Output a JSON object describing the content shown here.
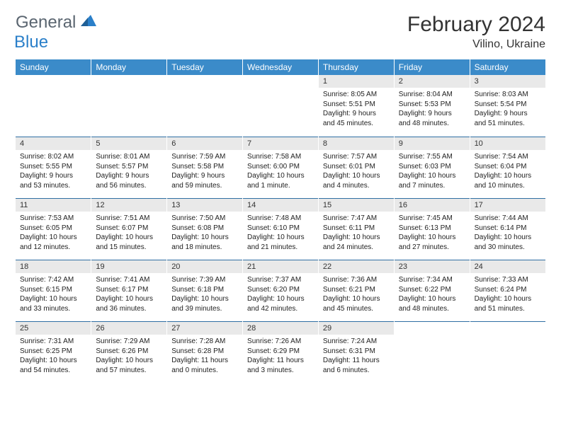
{
  "brand": {
    "general": "General",
    "blue": "Blue"
  },
  "title": "February 2024",
  "location": "Vilino, Ukraine",
  "colors": {
    "header_bg": "#3b8bc9",
    "header_text": "#ffffff",
    "strip_bg": "#e9e9e9",
    "divider": "#2f6fa3",
    "body_text": "#222222",
    "logo_gray": "#5a6570",
    "logo_blue": "#2a7fc9"
  },
  "weekdays": [
    "Sunday",
    "Monday",
    "Tuesday",
    "Wednesday",
    "Thursday",
    "Friday",
    "Saturday"
  ],
  "weeks": [
    [
      null,
      null,
      null,
      null,
      {
        "n": "1",
        "sr": "8:05 AM",
        "ss": "5:51 PM",
        "dl": "9 hours and 45 minutes."
      },
      {
        "n": "2",
        "sr": "8:04 AM",
        "ss": "5:53 PM",
        "dl": "9 hours and 48 minutes."
      },
      {
        "n": "3",
        "sr": "8:03 AM",
        "ss": "5:54 PM",
        "dl": "9 hours and 51 minutes."
      }
    ],
    [
      {
        "n": "4",
        "sr": "8:02 AM",
        "ss": "5:55 PM",
        "dl": "9 hours and 53 minutes."
      },
      {
        "n": "5",
        "sr": "8:01 AM",
        "ss": "5:57 PM",
        "dl": "9 hours and 56 minutes."
      },
      {
        "n": "6",
        "sr": "7:59 AM",
        "ss": "5:58 PM",
        "dl": "9 hours and 59 minutes."
      },
      {
        "n": "7",
        "sr": "7:58 AM",
        "ss": "6:00 PM",
        "dl": "10 hours and 1 minute."
      },
      {
        "n": "8",
        "sr": "7:57 AM",
        "ss": "6:01 PM",
        "dl": "10 hours and 4 minutes."
      },
      {
        "n": "9",
        "sr": "7:55 AM",
        "ss": "6:03 PM",
        "dl": "10 hours and 7 minutes."
      },
      {
        "n": "10",
        "sr": "7:54 AM",
        "ss": "6:04 PM",
        "dl": "10 hours and 10 minutes."
      }
    ],
    [
      {
        "n": "11",
        "sr": "7:53 AM",
        "ss": "6:05 PM",
        "dl": "10 hours and 12 minutes."
      },
      {
        "n": "12",
        "sr": "7:51 AM",
        "ss": "6:07 PM",
        "dl": "10 hours and 15 minutes."
      },
      {
        "n": "13",
        "sr": "7:50 AM",
        "ss": "6:08 PM",
        "dl": "10 hours and 18 minutes."
      },
      {
        "n": "14",
        "sr": "7:48 AM",
        "ss": "6:10 PM",
        "dl": "10 hours and 21 minutes."
      },
      {
        "n": "15",
        "sr": "7:47 AM",
        "ss": "6:11 PM",
        "dl": "10 hours and 24 minutes."
      },
      {
        "n": "16",
        "sr": "7:45 AM",
        "ss": "6:13 PM",
        "dl": "10 hours and 27 minutes."
      },
      {
        "n": "17",
        "sr": "7:44 AM",
        "ss": "6:14 PM",
        "dl": "10 hours and 30 minutes."
      }
    ],
    [
      {
        "n": "18",
        "sr": "7:42 AM",
        "ss": "6:15 PM",
        "dl": "10 hours and 33 minutes."
      },
      {
        "n": "19",
        "sr": "7:41 AM",
        "ss": "6:17 PM",
        "dl": "10 hours and 36 minutes."
      },
      {
        "n": "20",
        "sr": "7:39 AM",
        "ss": "6:18 PM",
        "dl": "10 hours and 39 minutes."
      },
      {
        "n": "21",
        "sr": "7:37 AM",
        "ss": "6:20 PM",
        "dl": "10 hours and 42 minutes."
      },
      {
        "n": "22",
        "sr": "7:36 AM",
        "ss": "6:21 PM",
        "dl": "10 hours and 45 minutes."
      },
      {
        "n": "23",
        "sr": "7:34 AM",
        "ss": "6:22 PM",
        "dl": "10 hours and 48 minutes."
      },
      {
        "n": "24",
        "sr": "7:33 AM",
        "ss": "6:24 PM",
        "dl": "10 hours and 51 minutes."
      }
    ],
    [
      {
        "n": "25",
        "sr": "7:31 AM",
        "ss": "6:25 PM",
        "dl": "10 hours and 54 minutes."
      },
      {
        "n": "26",
        "sr": "7:29 AM",
        "ss": "6:26 PM",
        "dl": "10 hours and 57 minutes."
      },
      {
        "n": "27",
        "sr": "7:28 AM",
        "ss": "6:28 PM",
        "dl": "11 hours and 0 minutes."
      },
      {
        "n": "28",
        "sr": "7:26 AM",
        "ss": "6:29 PM",
        "dl": "11 hours and 3 minutes."
      },
      {
        "n": "29",
        "sr": "7:24 AM",
        "ss": "6:31 PM",
        "dl": "11 hours and 6 minutes."
      },
      null,
      null
    ]
  ],
  "labels": {
    "sunrise": "Sunrise: ",
    "sunset": "Sunset: ",
    "daylight": "Daylight: "
  }
}
